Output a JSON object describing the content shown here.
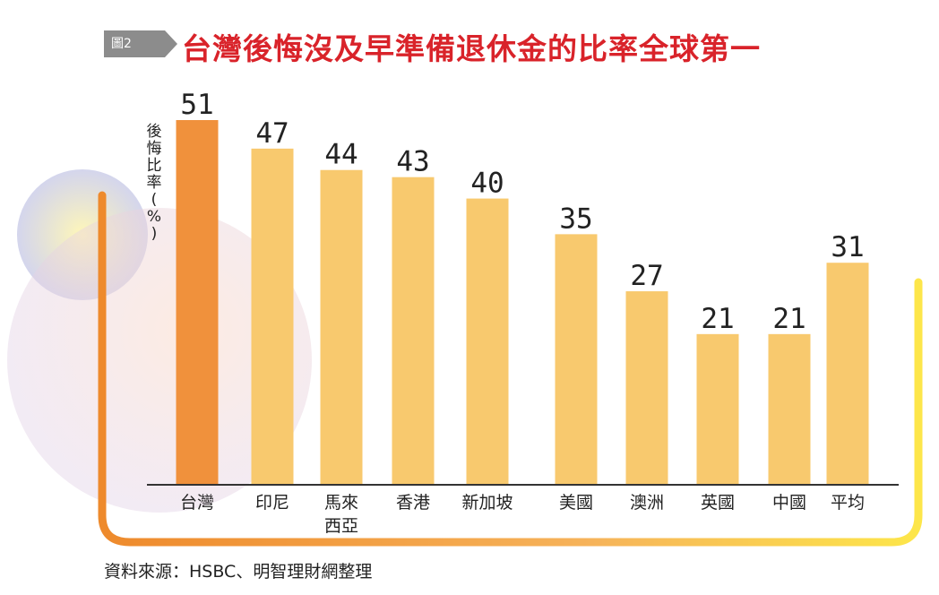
{
  "header": {
    "figure_label": "圖2",
    "title": "台灣後悔沒及早準備退休金的比率全球第一"
  },
  "colors": {
    "title_red": "#d9232a",
    "highlight_bar": "#f0913c",
    "bar": "#f8c96e",
    "tag_gray": "#8c8c8c"
  },
  "chart_data": {
    "type": "bar",
    "title": "台灣後悔沒及早準備退休金的比率全球第一",
    "ylabel": "後悔比率(%)",
    "xlabel": "",
    "categories": [
      "台灣",
      "印尼",
      "馬來西亞",
      "香港",
      "新加坡",
      "美國",
      "澳洲",
      "英國",
      "中國",
      "平均"
    ],
    "category_lines": [
      [
        "台灣"
      ],
      [
        "印尼"
      ],
      [
        "馬來",
        "西亞"
      ],
      [
        "香港"
      ],
      [
        "新加坡"
      ],
      [
        "美國"
      ],
      [
        "澳洲"
      ],
      [
        "英國"
      ],
      [
        "中國"
      ],
      [
        "平均"
      ]
    ],
    "values": [
      51,
      47,
      44,
      43,
      40,
      35,
      27,
      21,
      21,
      31
    ],
    "highlight_index": 0,
    "ylim": [
      0,
      51
    ],
    "grid": false,
    "legend": "none"
  },
  "footer": {
    "source": "資料來源：HSBC、明智理財網整理"
  }
}
